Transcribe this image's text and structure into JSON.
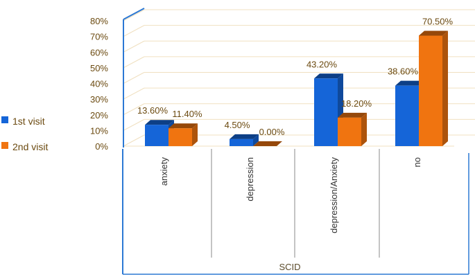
{
  "chart_data": {
    "type": "bar",
    "categories": [
      "anxiety",
      "depression",
      "depression/Anxiety",
      "no"
    ],
    "series": [
      {
        "name": "1st visit",
        "values": [
          13.6,
          4.5,
          43.2,
          38.6
        ],
        "labels": [
          "13.60%",
          "4.50%",
          "43.20%",
          "38.60%"
        ],
        "color": "#1565d8"
      },
      {
        "name": "2nd visit",
        "values": [
          11.4,
          0.0,
          18.2,
          70.5
        ],
        "labels": [
          "11.40%",
          "0.00%",
          "18.20%",
          "70.50%"
        ],
        "color": "#f07410"
      }
    ],
    "yticks": [
      "0%",
      "10%",
      "20%",
      "30%",
      "40%",
      "50%",
      "60%",
      "70%",
      "80%"
    ],
    "ylim": [
      0,
      80
    ],
    "xlabel": "SCID",
    "legend_position": "left",
    "grid": true,
    "style": "3d-clustered-column"
  }
}
